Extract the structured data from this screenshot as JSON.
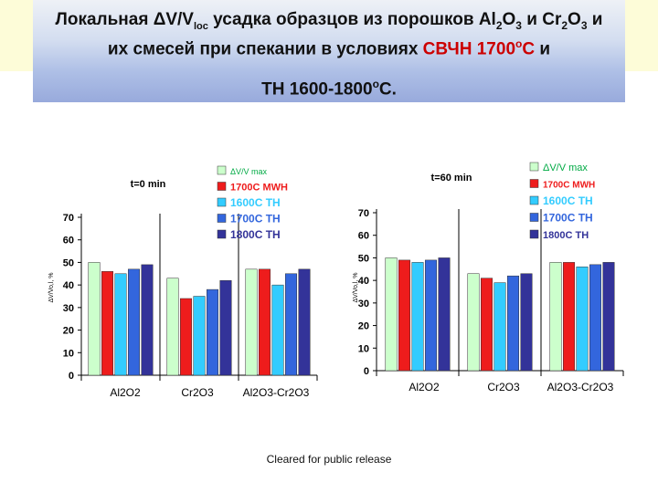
{
  "header": {
    "line1_prefix": "Локальная ΔV/V",
    "line1_sub1": "loc",
    "line1_mid": " усадка образцов из порошков Al",
    "line1_sub2": "2",
    "line1_o1": "O",
    "line1_sub3": "3",
    "line1_and": " и Cr",
    "line1_sub4": "2",
    "line1_o2": "O",
    "line1_sub5": "3",
    "line1_end": " и",
    "line2_text": "их смесей при спекании в условиях ",
    "line2_red": "СВЧН 1700",
    "line2_sup": "o",
    "line2_red_end": "С",
    "line2_end": "  и",
    "line3_text": "ТН 1600-1800",
    "line3_sup": "o",
    "line3_end": "С."
  },
  "footer": {
    "text": "Cleared for public release"
  },
  "colors": {
    "vmax": "#ccffcc",
    "mwh1700": "#ee1c1c",
    "th1600": "#33ccff",
    "th1700": "#3366dd",
    "th1800": "#333399"
  },
  "chart_data": [
    {
      "type": "bar",
      "title": "t=0 min",
      "ylabel": "ΔV/Vo,l, %",
      "ylim": [
        0,
        70
      ],
      "yticks": [
        "0",
        "10",
        "20",
        "30",
        "40",
        "50",
        "60",
        "70"
      ],
      "categories": [
        "Al2O2",
        "Cr2O3",
        "Al2O3-Cr2O3"
      ],
      "series": [
        {
          "name": "ΔV/V max",
          "values": [
            50,
            43,
            47
          ]
        },
        {
          "name": "1700C MWH",
          "values": [
            46,
            34,
            47
          ]
        },
        {
          "name": "1600C TH",
          "values": [
            45,
            35,
            40
          ]
        },
        {
          "name": "1700C TH",
          "values": [
            47,
            38,
            45
          ]
        },
        {
          "name": "1800C TH",
          "values": [
            49,
            42,
            47
          ]
        }
      ]
    },
    {
      "type": "bar",
      "title": "t=60 min",
      "ylabel": "ΔV/Vo,l, %",
      "ylim": [
        0,
        70
      ],
      "yticks": [
        "0",
        "10",
        "20",
        "30",
        "40",
        "50",
        "60",
        "70"
      ],
      "categories": [
        "Al2O2",
        "Cr2O3",
        "Al2O3-Cr2O3"
      ],
      "series": [
        {
          "name": "ΔV/V max",
          "values": [
            50,
            43,
            48
          ]
        },
        {
          "name": "1700C MWH",
          "values": [
            49,
            41,
            48
          ]
        },
        {
          "name": "1600C TH",
          "values": [
            48,
            39,
            46
          ]
        },
        {
          "name": "1700C TH",
          "values": [
            49,
            42,
            47
          ]
        },
        {
          "name": "1800C TH",
          "values": [
            50,
            43,
            48
          ]
        }
      ]
    }
  ]
}
